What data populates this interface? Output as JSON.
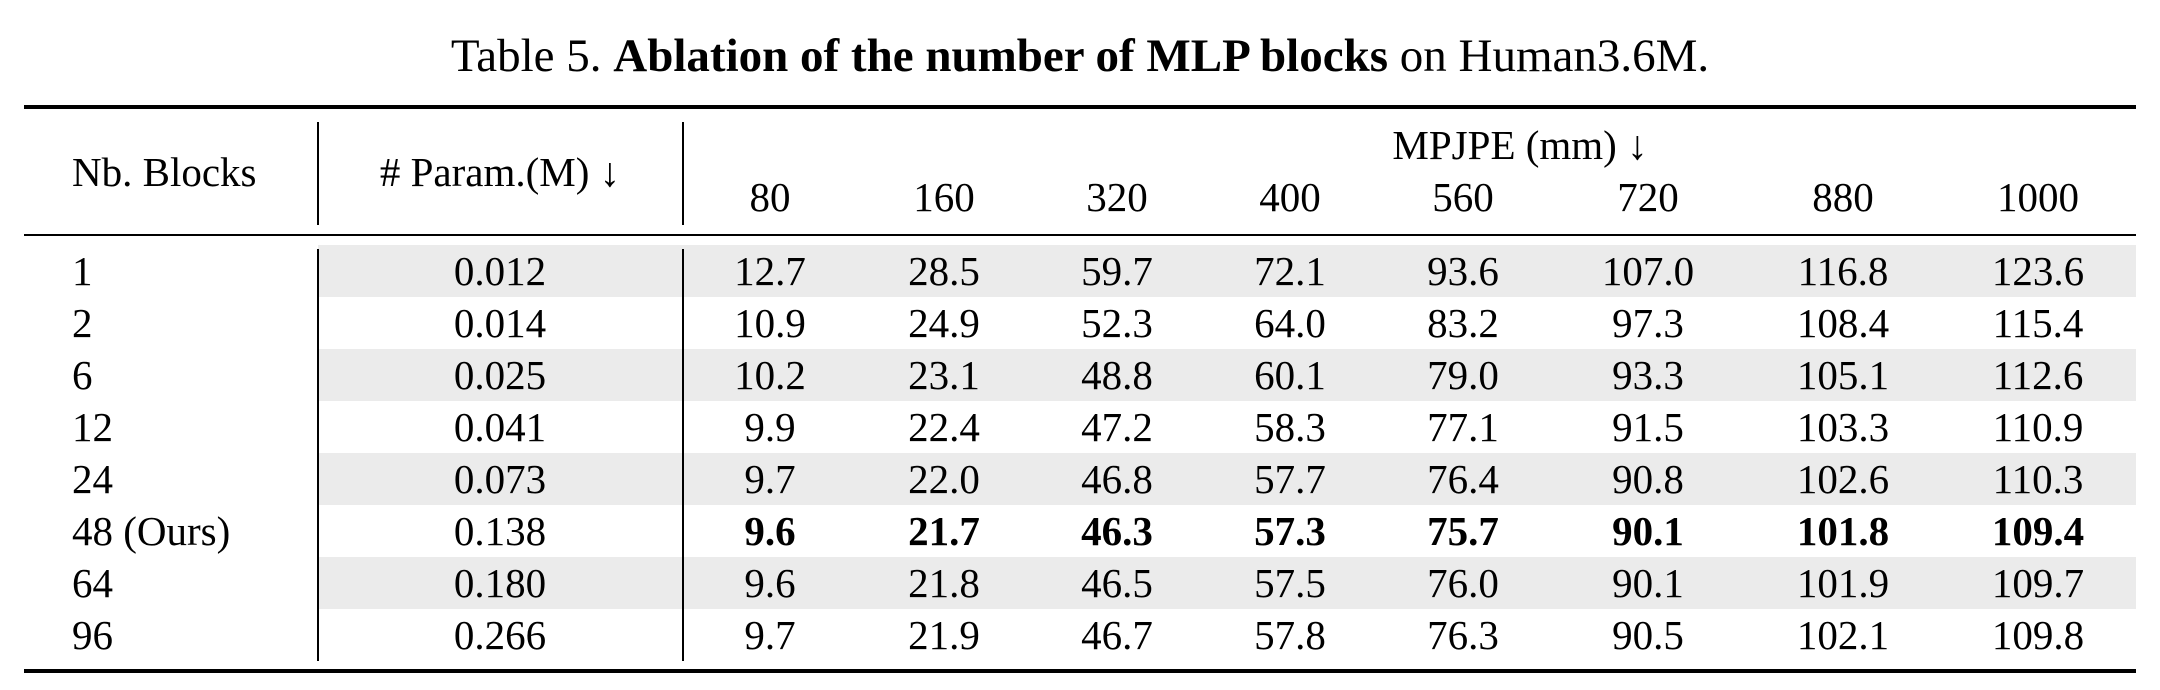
{
  "caption": {
    "prefix": "Table 5. ",
    "bold": "Ablation of the number of MLP blocks",
    "suffix": " on Human3.6M."
  },
  "header": {
    "blocks_label": "Nb. Blocks",
    "params_label": "# Param.(M) ↓",
    "mpjpe_label": "MPJPE (mm) ↓",
    "horizons": [
      "80",
      "160",
      "320",
      "400",
      "560",
      "720",
      "880",
      "1000"
    ]
  },
  "rows": [
    {
      "blocks": "1",
      "params": "0.012",
      "values": [
        "12.7",
        "28.5",
        "59.7",
        "72.1",
        "93.6",
        "107.0",
        "116.8",
        "123.6"
      ],
      "shaded": true,
      "bold": false
    },
    {
      "blocks": "2",
      "params": "0.014",
      "values": [
        "10.9",
        "24.9",
        "52.3",
        "64.0",
        "83.2",
        "97.3",
        "108.4",
        "115.4"
      ],
      "shaded": false,
      "bold": false
    },
    {
      "blocks": "6",
      "params": "0.025",
      "values": [
        "10.2",
        "23.1",
        "48.8",
        "60.1",
        "79.0",
        "93.3",
        "105.1",
        "112.6"
      ],
      "shaded": true,
      "bold": false
    },
    {
      "blocks": "12",
      "params": "0.041",
      "values": [
        "9.9",
        "22.4",
        "47.2",
        "58.3",
        "77.1",
        "91.5",
        "103.3",
        "110.9"
      ],
      "shaded": false,
      "bold": false
    },
    {
      "blocks": "24",
      "params": "0.073",
      "values": [
        "9.7",
        "22.0",
        "46.8",
        "57.7",
        "76.4",
        "90.8",
        "102.6",
        "110.3"
      ],
      "shaded": true,
      "bold": false
    },
    {
      "blocks": "48 (Ours)",
      "params": "0.138",
      "values": [
        "9.6",
        "21.7",
        "46.3",
        "57.3",
        "75.7",
        "90.1",
        "101.8",
        "109.4"
      ],
      "shaded": false,
      "bold": true
    },
    {
      "blocks": "64",
      "params": "0.180",
      "values": [
        "9.6",
        "21.8",
        "46.5",
        "57.5",
        "76.0",
        "90.1",
        "101.9",
        "109.7"
      ],
      "shaded": true,
      "bold": false
    },
    {
      "blocks": "96",
      "params": "0.266",
      "values": [
        "9.7",
        "21.9",
        "46.7",
        "57.8",
        "76.3",
        "90.5",
        "102.1",
        "109.8"
      ],
      "shaded": false,
      "bold": false
    }
  ]
}
